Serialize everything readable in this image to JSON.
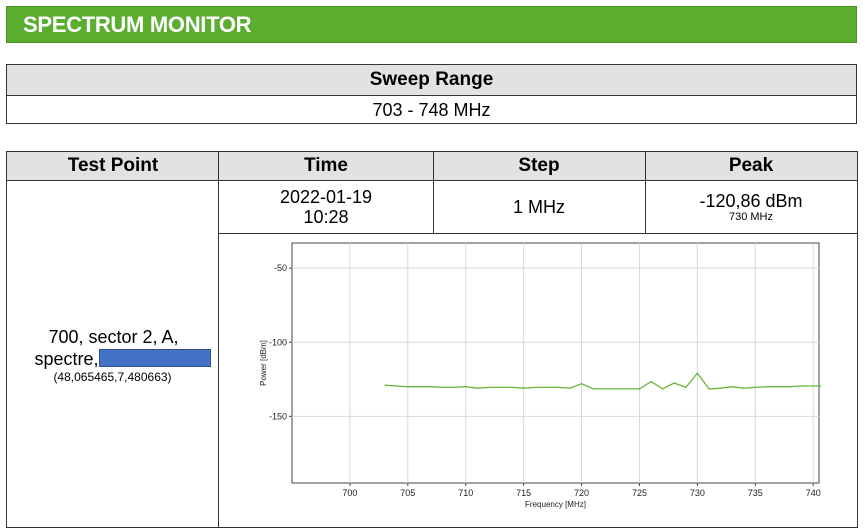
{
  "header": {
    "title": "SPECTRUM MONITOR",
    "color": "#5aad2f"
  },
  "sweep": {
    "label": "Sweep Range",
    "value": "703 - 748 MHz"
  },
  "table": {
    "headers": {
      "test_point": "Test Point",
      "time": "Time",
      "step": "Step",
      "peak": "Peak"
    },
    "row": {
      "test_point_line1": "700, sector 2, A,",
      "test_point_line2": "spectre,",
      "test_point_coords": "(48,065465,7,480663)",
      "time_date": "2022-01-19",
      "time_clock": "10:28",
      "step": "1 MHz",
      "peak_value": "-120,86 dBm",
      "peak_freq": "730 MHz"
    }
  },
  "chart_data": {
    "type": "line",
    "xlabel": "Frequency [MHz]",
    "ylabel": "Power [dBm]",
    "xlim": [
      695,
      740.5
    ],
    "ylim": [
      -195,
      -33
    ],
    "x_ticks": [
      700,
      705,
      710,
      715,
      720,
      725,
      730,
      735,
      740
    ],
    "y_ticks": [
      -50,
      -100,
      -150
    ],
    "grid": true,
    "series": [
      {
        "color": "#6ab43a",
        "x": [
          703,
          704,
          705,
          706,
          707,
          708,
          709,
          710,
          711,
          712,
          713,
          714,
          715,
          716,
          717,
          718,
          719,
          720,
          721,
          722,
          723,
          724,
          725,
          726,
          727,
          728,
          729,
          730,
          731,
          732,
          733,
          734,
          735,
          736,
          737,
          738,
          739,
          740,
          741
        ],
        "y": [
          -129,
          -129.5,
          -130,
          -130,
          -130,
          -130.5,
          -130.5,
          -130,
          -131,
          -130.5,
          -130.5,
          -130.5,
          -131,
          -130.5,
          -130.5,
          -130.5,
          -131,
          -128,
          -131.5,
          -131.5,
          -131.5,
          -131.5,
          -131.5,
          -126.5,
          -131.5,
          -127.5,
          -130.5,
          -120.9,
          -131.5,
          -131,
          -130,
          -131,
          -130.5,
          -130,
          -130,
          -130,
          -129.5,
          -129.5,
          -129.5
        ]
      }
    ]
  }
}
